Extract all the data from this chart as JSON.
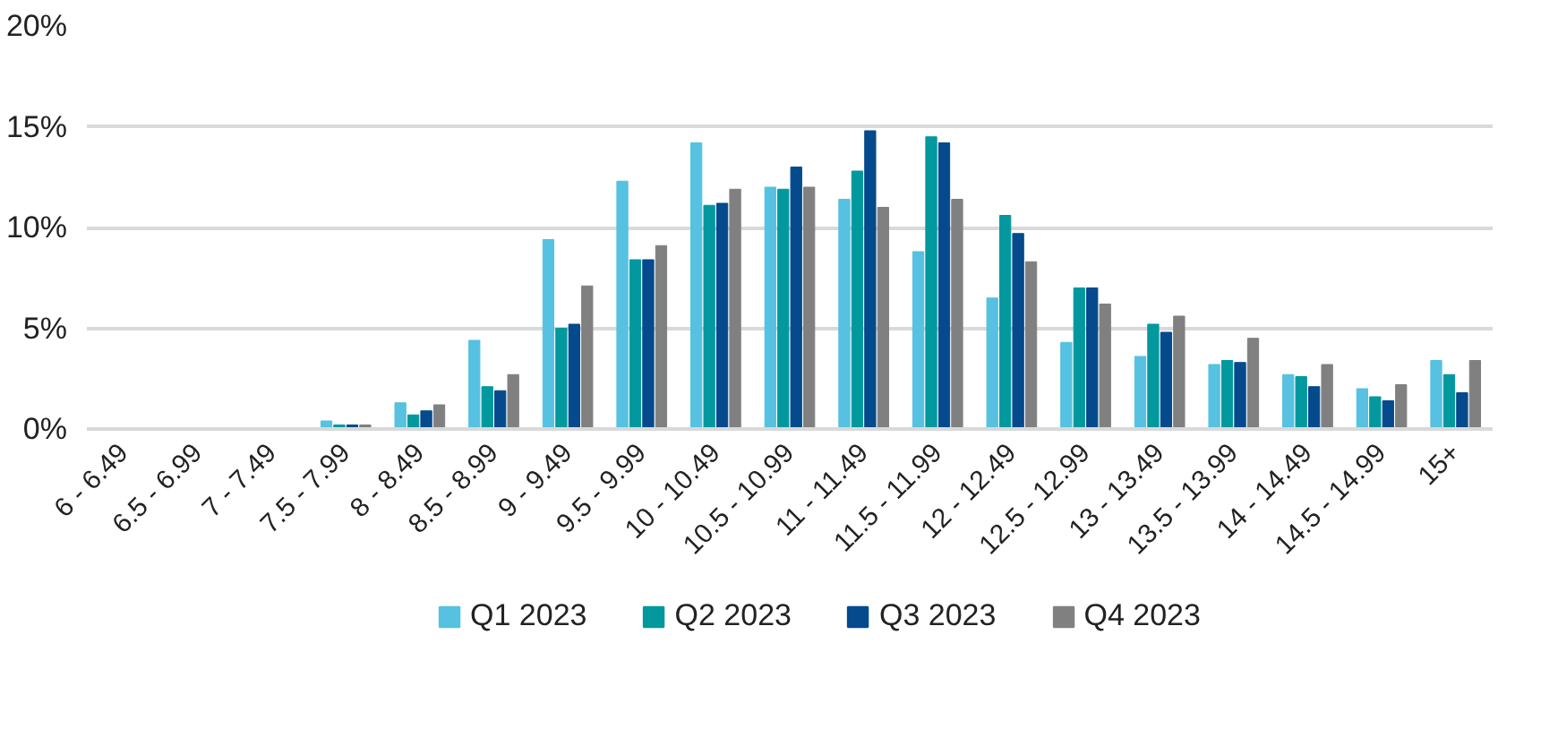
{
  "chart_data": {
    "type": "bar",
    "categories": [
      "6 - 6.49",
      "6.5 - 6.99",
      "7 - 7.49",
      "7.5 - 7.99",
      "8 - 8.49",
      "8.5 - 8.99",
      "9 - 9.49",
      "9.5 - 9.99",
      "10 - 10.49",
      "10.5 - 10.99",
      "11 - 11.49",
      "11.5 - 11.99",
      "12 - 12.49",
      "12.5 - 12.99",
      "13 - 13.49",
      "13.5 - 13.99",
      "14 - 14.49",
      "14.5 - 14.99",
      "15+"
    ],
    "series": [
      {
        "name": "Q1 2023",
        "color": "#56c1e0",
        "values": [
          0,
          0,
          0,
          0.4,
          1.3,
          4.4,
          9.4,
          12.3,
          14.2,
          12.0,
          11.4,
          8.8,
          6.5,
          4.3,
          3.6,
          3.2,
          2.7,
          2.0,
          3.4
        ]
      },
      {
        "name": "Q2 2023",
        "color": "#03989e",
        "values": [
          0,
          0,
          0,
          0.2,
          0.7,
          2.1,
          5.0,
          8.4,
          11.1,
          11.9,
          12.8,
          14.5,
          10.6,
          7.0,
          5.2,
          3.4,
          2.6,
          1.6,
          2.7
        ]
      },
      {
        "name": "Q3 2023",
        "color": "#044a8c",
        "values": [
          0,
          0,
          0,
          0.2,
          0.9,
          1.9,
          5.2,
          8.4,
          11.2,
          13.0,
          14.8,
          14.2,
          9.7,
          7.0,
          4.8,
          3.3,
          2.1,
          1.4,
          1.8
        ]
      },
      {
        "name": "Q4 2023",
        "color": "#808080",
        "values": [
          0,
          0,
          0,
          0.2,
          1.2,
          2.7,
          7.1,
          9.1,
          11.9,
          12.0,
          11.0,
          11.4,
          8.3,
          6.2,
          5.6,
          4.5,
          3.2,
          2.2,
          3.4
        ]
      }
    ],
    "ylim": [
      0,
      20
    ],
    "yticks": [
      {
        "value": 0,
        "label": "0%"
      },
      {
        "value": 5,
        "label": "5%"
      },
      {
        "value": 10,
        "label": "10%"
      },
      {
        "value": 15,
        "label": "15%"
      },
      {
        "value": 20,
        "label": "20%"
      }
    ],
    "grid": "y",
    "legend": "bottom"
  }
}
